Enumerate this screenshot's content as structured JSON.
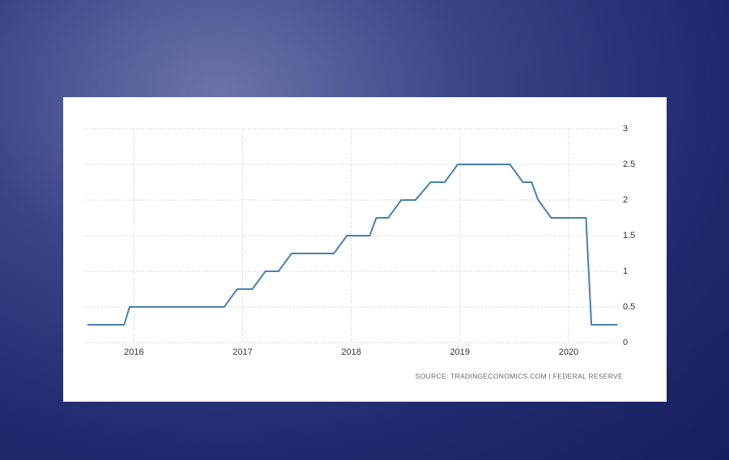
{
  "chart_data": {
    "type": "line",
    "x": [
      2015.57,
      2015.91,
      2015.96,
      2016.83,
      2016.95,
      2017.09,
      2017.21,
      2017.33,
      2017.45,
      2017.84,
      2017.96,
      2018.17,
      2018.23,
      2018.34,
      2018.46,
      2018.59,
      2018.73,
      2018.86,
      2018.98,
      2019.46,
      2019.58,
      2019.66,
      2019.72,
      2019.84,
      2020.16,
      2020.21,
      2020.45
    ],
    "series": [
      {
        "color": "#4a7fb5",
        "values": [
          0.25,
          0.25,
          0.5,
          0.5,
          0.75,
          0.75,
          1,
          1,
          1.25,
          1.25,
          1.5,
          1.5,
          1.75,
          1.75,
          2,
          2,
          2.25,
          2.25,
          2.5,
          2.5,
          2.25,
          2.25,
          2,
          1.75,
          1.75,
          0.25,
          0.25
        ]
      }
    ],
    "xlim": [
      2015.55,
      2020.47
    ],
    "xticks": [
      2016,
      2017,
      2018,
      2019,
      2020
    ],
    "ylim": [
      0,
      3
    ],
    "yticks": [
      0,
      0.5,
      1,
      1.5,
      2,
      2.5,
      3
    ],
    "grid": true,
    "source": "SOURCE: TRADINGECONOMICS.COM | FEDERAL RESERVE"
  }
}
